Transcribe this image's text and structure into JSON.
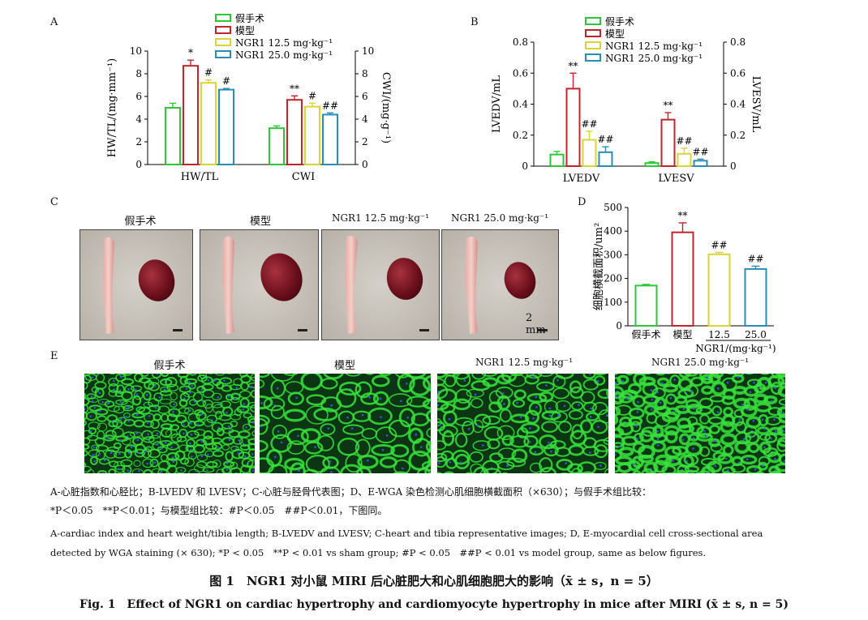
{
  "legend": {
    "sham": "假手术",
    "model": "模型",
    "ngr_low": "NGR1 12.5 mg·kg⁻¹",
    "ngr_high": "NGR1 25.0 mg·kg⁻¹"
  },
  "colors": {
    "sham": "#2fc637",
    "model": "#c0242c",
    "ngr_low": "#d8d43a",
    "ngr_high": "#2a8db5",
    "micro_green": "#39e33c"
  },
  "panels": {
    "a": {
      "label": "A"
    },
    "b": {
      "label": "B"
    },
    "c": {
      "label": "C",
      "photo_titles": [
        "假手术",
        "模型",
        "NGR1 12.5 mg·kg⁻¹",
        "NGR1 25.0 mg·kg⁻¹"
      ],
      "scale_text": "2 mm"
    },
    "d": {
      "label": "D"
    },
    "e": {
      "label": "E",
      "image_titles": [
        "假手术",
        "模型",
        "NGR1 12.5 mg·kg⁻¹",
        "NGR1 25.0 mg·kg⁻¹"
      ]
    }
  },
  "chart_data": [
    {
      "type": "bar",
      "panel": "A",
      "categories": [
        "HW/TL",
        "CWI"
      ],
      "series": [
        {
          "name": "假手术",
          "values": [
            5.0,
            3.2
          ],
          "errors": [
            0.4,
            0.2
          ],
          "marks": [
            "",
            ""
          ]
        },
        {
          "name": "模型",
          "values": [
            8.7,
            5.7
          ],
          "errors": [
            0.5,
            0.35
          ],
          "marks": [
            "*",
            "**"
          ]
        },
        {
          "name": "NGR1 12.5 mg·kg⁻¹",
          "values": [
            7.2,
            5.1
          ],
          "errors": [
            0.25,
            0.3
          ],
          "marks": [
            "#",
            "#"
          ]
        },
        {
          "name": "NGR1 25.0 mg·kg⁻¹",
          "values": [
            6.6,
            4.4
          ],
          "errors": [
            0.1,
            0.15
          ],
          "marks": [
            "#",
            "##"
          ]
        }
      ],
      "ylabel_left": "HW/TL/(mg·mm⁻¹)",
      "ylabel_right": "CWI/(mg·g⁻¹)",
      "ylim": [
        0,
        10
      ],
      "yticks": [
        "0",
        "2",
        "4",
        "6",
        "8",
        "10"
      ]
    },
    {
      "type": "bar",
      "panel": "B",
      "categories": [
        "LVEDV",
        "LVESV"
      ],
      "series": [
        {
          "name": "假手术",
          "values": [
            0.075,
            0.02
          ],
          "errors": [
            0.02,
            0.008
          ],
          "marks": [
            "",
            ""
          ]
        },
        {
          "name": "模型",
          "values": [
            0.5,
            0.3
          ],
          "errors": [
            0.1,
            0.045
          ],
          "marks": [
            "**",
            "**"
          ]
        },
        {
          "name": "NGR1 12.5 mg·kg⁻¹",
          "values": [
            0.17,
            0.08
          ],
          "errors": [
            0.055,
            0.035
          ],
          "marks": [
            "##",
            "##"
          ]
        },
        {
          "name": "NGR1 25.0 mg·kg⁻¹",
          "values": [
            0.09,
            0.035
          ],
          "errors": [
            0.035,
            0.01
          ],
          "marks": [
            "##",
            "##"
          ]
        }
      ],
      "ylabel_left": "LVEDV/mL",
      "ylabel_right": "LVESV/mL",
      "ylim": [
        0,
        0.8
      ],
      "yticks": [
        "0",
        "0.2",
        "0.4",
        "0.6",
        "0.8"
      ]
    },
    {
      "type": "bar",
      "panel": "D",
      "categories": [
        "假手术",
        "模型",
        "12.5",
        "25.0"
      ],
      "values": [
        170,
        395,
        302,
        240
      ],
      "errors": [
        5,
        40,
        8,
        12
      ],
      "marks": [
        "",
        "**",
        "##",
        "##"
      ],
      "ylabel": "细胞横截面积/um²",
      "xlabel": "NGR1/(mg·kg⁻¹)",
      "ylim": [
        0,
        500
      ],
      "yticks": [
        "0",
        "100",
        "200",
        "300",
        "400",
        "500"
      ]
    }
  ],
  "caption": {
    "cn_line1": "A-心脏指数和心胫比；B-LVEDV 和 LVESV；C-心脏与胫骨代表图；D、E-WGA 染色检测心肌细胞横截面积（×630）；与假手术组比较：",
    "cn_line2": "*P＜0.05　**P＜0.01；与模型组比较：#P＜0.05　##P＜0.01，下图同。",
    "en_line1": "A-cardiac index and heart weight/tibia length; B-LVEDV and LVESV; C-heart and tibia representative images; D, E-myocardial cell cross-sectional area",
    "en_line2": "detected by WGA staining (× 630); *P < 0.05　**P < 0.01 vs sham group; #P < 0.05　##P < 0.01 vs model group, same as below figures."
  },
  "figure_title_cn": "图 1　NGR1 对小鼠 MIRI 后心脏肥大和心肌细胞肥大的影响（x̄ ± s，n = 5）",
  "figure_title_en": "Fig. 1　Effect of NGR1 on cardiac hypertrophy and cardiomyocyte hypertrophy in mice after MIRI (x̄ ± s, n = 5)"
}
